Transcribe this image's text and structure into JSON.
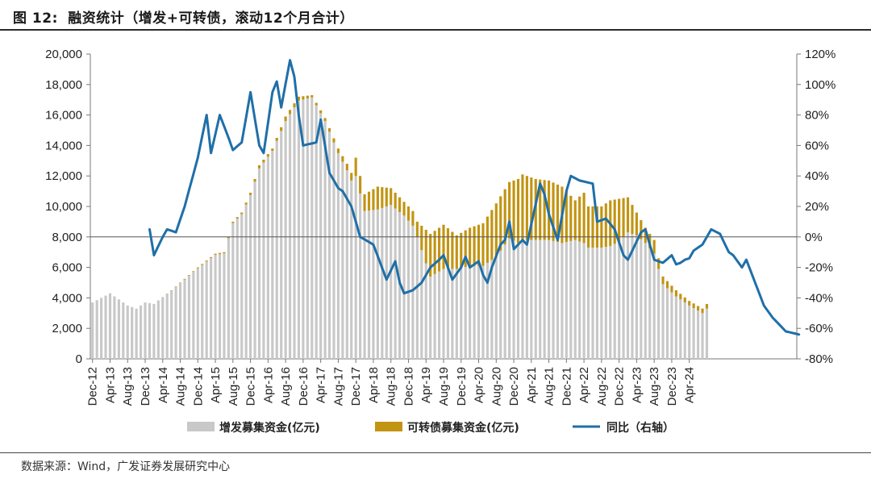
{
  "figure": {
    "label": "图 12:",
    "title": "融资统计（增发+可转债，滚动12个月合计）"
  },
  "source": "数据来源：Wind，广发证券发展研究中心",
  "chart_data": {
    "type": "bar+line",
    "title": "融资统计（增发+可转债，滚动12个月合计）",
    "stacked": true,
    "left_axis": {
      "unit": "亿元",
      "ylim": [
        0,
        20000
      ],
      "ticks": [
        "0",
        "2,000",
        "4,000",
        "6,000",
        "8,000",
        "10,000",
        "12,000",
        "14,000",
        "16,000",
        "18,000",
        "20,000"
      ]
    },
    "right_axis": {
      "unit": "%",
      "ylim": [
        -80,
        120
      ],
      "ticks": [
        "-80%",
        "-60%",
        "-40%",
        "-20%",
        "0%",
        "20%",
        "40%",
        "60%",
        "80%",
        "100%",
        "120%"
      ]
    },
    "x_tick_labels": [
      "Dec-12",
      "Apr-13",
      "Aug-13",
      "Dec-13",
      "Apr-14",
      "Aug-14",
      "Dec-14",
      "Apr-15",
      "Aug-15",
      "Dec-15",
      "Apr-16",
      "Aug-16",
      "Dec-16",
      "Apr-17",
      "Aug-17",
      "Dec-17",
      "Apr-18",
      "Aug-18",
      "Dec-18",
      "Apr-19",
      "Aug-19",
      "Dec-19",
      "Apr-20",
      "Aug-20",
      "Dec-20",
      "Apr-21",
      "Aug-21",
      "Dec-21",
      "Apr-22",
      "Aug-22",
      "Dec-22",
      "Apr-23",
      "Aug-23",
      "Dec-23",
      "Apr-24"
    ],
    "period": {
      "start": "Dec-12",
      "end": "Jul-24",
      "frequency": "monthly"
    },
    "anchors_total": [
      [
        0,
        3700
      ],
      [
        4,
        4300
      ],
      [
        8,
        3500
      ],
      [
        10,
        3300
      ],
      [
        12,
        3700
      ],
      [
        14,
        3600
      ],
      [
        18,
        4500
      ],
      [
        24,
        6000
      ],
      [
        28,
        6900
      ],
      [
        30,
        7000
      ],
      [
        32,
        9000
      ],
      [
        34,
        9600
      ],
      [
        36,
        10900
      ],
      [
        38,
        12700
      ],
      [
        41,
        13800
      ],
      [
        44,
        15900
      ],
      [
        47,
        17200
      ],
      [
        50,
        17300
      ],
      [
        53,
        15800
      ],
      [
        56,
        13800
      ],
      [
        58,
        12800
      ],
      [
        59,
        12200
      ],
      [
        60,
        13200
      ],
      [
        62,
        10800
      ],
      [
        65,
        11300
      ],
      [
        68,
        11200
      ],
      [
        71,
        10300
      ],
      [
        73,
        9700
      ],
      [
        74,
        9000
      ],
      [
        77,
        8200
      ],
      [
        80,
        8800
      ],
      [
        83,
        8100
      ],
      [
        86,
        8600
      ],
      [
        89,
        8900
      ],
      [
        92,
        10200
      ],
      [
        95,
        11600
      ],
      [
        97,
        11800
      ],
      [
        98,
        12100
      ],
      [
        101,
        11800
      ],
      [
        104,
        11700
      ],
      [
        107,
        11300
      ],
      [
        110,
        10400
      ],
      [
        112,
        10900
      ],
      [
        113,
        10000
      ],
      [
        116,
        10000
      ],
      [
        118,
        10400
      ],
      [
        120,
        10500
      ],
      [
        122,
        10600
      ],
      [
        124,
        9600
      ],
      [
        126,
        8600
      ],
      [
        128,
        7800
      ],
      [
        130,
        5400
      ],
      [
        133,
        4500
      ],
      [
        136,
        3800
      ],
      [
        139,
        3300
      ],
      [
        140,
        3600
      ]
    ],
    "anchors_convertible": [
      [
        0,
        0
      ],
      [
        13,
        0
      ],
      [
        34,
        100
      ],
      [
        38,
        200
      ],
      [
        41,
        150
      ],
      [
        44,
        300
      ],
      [
        47,
        250
      ],
      [
        50,
        150
      ],
      [
        53,
        200
      ],
      [
        56,
        300
      ],
      [
        59,
        500
      ],
      [
        60,
        1200
      ],
      [
        62,
        1100
      ],
      [
        65,
        1500
      ],
      [
        68,
        1100
      ],
      [
        71,
        900
      ],
      [
        74,
        1000
      ],
      [
        77,
        2800
      ],
      [
        80,
        2900
      ],
      [
        83,
        2200
      ],
      [
        86,
        2500
      ],
      [
        89,
        2800
      ],
      [
        92,
        3500
      ],
      [
        95,
        3700
      ],
      [
        97,
        4200
      ],
      [
        98,
        4300
      ],
      [
        101,
        4000
      ],
      [
        104,
        3900
      ],
      [
        107,
        3700
      ],
      [
        110,
        2600
      ],
      [
        112,
        3300
      ],
      [
        113,
        2700
      ],
      [
        116,
        2700
      ],
      [
        118,
        3000
      ],
      [
        120,
        2800
      ],
      [
        122,
        2300
      ],
      [
        124,
        1500
      ],
      [
        126,
        1000
      ],
      [
        128,
        900
      ],
      [
        130,
        500
      ],
      [
        133,
        400
      ],
      [
        136,
        300
      ],
      [
        140,
        300
      ]
    ],
    "anchors_yoy_pct": [
      [
        13,
        5
      ],
      [
        14,
        -12
      ],
      [
        16,
        0
      ],
      [
        17,
        5
      ],
      [
        19,
        3
      ],
      [
        21,
        20
      ],
      [
        24,
        52
      ],
      [
        26,
        80
      ],
      [
        27,
        55
      ],
      [
        29,
        80
      ],
      [
        31,
        65
      ],
      [
        32,
        57
      ],
      [
        34,
        62
      ],
      [
        36,
        95
      ],
      [
        38,
        60
      ],
      [
        39,
        55
      ],
      [
        41,
        95
      ],
      [
        42,
        102
      ],
      [
        43,
        85
      ],
      [
        45,
        116
      ],
      [
        46,
        105
      ],
      [
        47,
        80
      ],
      [
        48,
        60
      ],
      [
        51,
        62
      ],
      [
        52,
        77
      ],
      [
        54,
        42
      ],
      [
        56,
        32
      ],
      [
        57,
        30
      ],
      [
        59,
        20
      ],
      [
        61,
        0
      ],
      [
        64,
        -5
      ],
      [
        67,
        -28
      ],
      [
        69,
        -16
      ],
      [
        70,
        -30
      ],
      [
        71,
        -37
      ],
      [
        73,
        -35
      ],
      [
        75,
        -30
      ],
      [
        77,
        -20
      ],
      [
        79,
        -15
      ],
      [
        80,
        -12
      ],
      [
        82,
        -28
      ],
      [
        84,
        -20
      ],
      [
        85,
        -13
      ],
      [
        86,
        -20
      ],
      [
        87,
        -18
      ],
      [
        88,
        -16
      ],
      [
        89,
        -25
      ],
      [
        90,
        -30
      ],
      [
        91,
        -20
      ],
      [
        93,
        -5
      ],
      [
        94,
        -2
      ],
      [
        95,
        10
      ],
      [
        96,
        -8
      ],
      [
        98,
        -2
      ],
      [
        99,
        -5
      ],
      [
        102,
        35
      ],
      [
        103,
        28
      ],
      [
        104,
        15
      ],
      [
        106,
        -2
      ],
      [
        108,
        30
      ],
      [
        109,
        40
      ],
      [
        111,
        37
      ],
      [
        114,
        35
      ],
      [
        115,
        10
      ],
      [
        117,
        12
      ],
      [
        119,
        5
      ],
      [
        121,
        -12
      ],
      [
        122,
        -15
      ],
      [
        125,
        3
      ],
      [
        126,
        5
      ],
      [
        128,
        -15
      ],
      [
        130,
        -17
      ],
      [
        132,
        -12
      ],
      [
        133,
        -18
      ],
      [
        134,
        -17
      ],
      [
        135,
        -15
      ],
      [
        136,
        -14
      ],
      [
        137,
        -9
      ],
      [
        139,
        -5
      ],
      [
        141,
        5
      ],
      [
        143,
        2
      ],
      [
        145,
        -10
      ],
      [
        146,
        -12
      ],
      [
        148,
        -20
      ],
      [
        149,
        -15
      ],
      [
        151,
        -30
      ],
      [
        153,
        -45
      ],
      [
        155,
        -53
      ],
      [
        158,
        -62
      ],
      [
        161,
        -64
      ]
    ],
    "series": [
      {
        "name": "增发募集资金(亿元)",
        "type": "bar",
        "axis": "left",
        "color": "#c8c8c8"
      },
      {
        "name": "可转债募集资金(亿元)",
        "type": "bar",
        "axis": "left",
        "color": "#c29412"
      },
      {
        "name": "同比（右轴）",
        "type": "line",
        "axis": "right",
        "color": "#1f6fa8"
      }
    ]
  }
}
